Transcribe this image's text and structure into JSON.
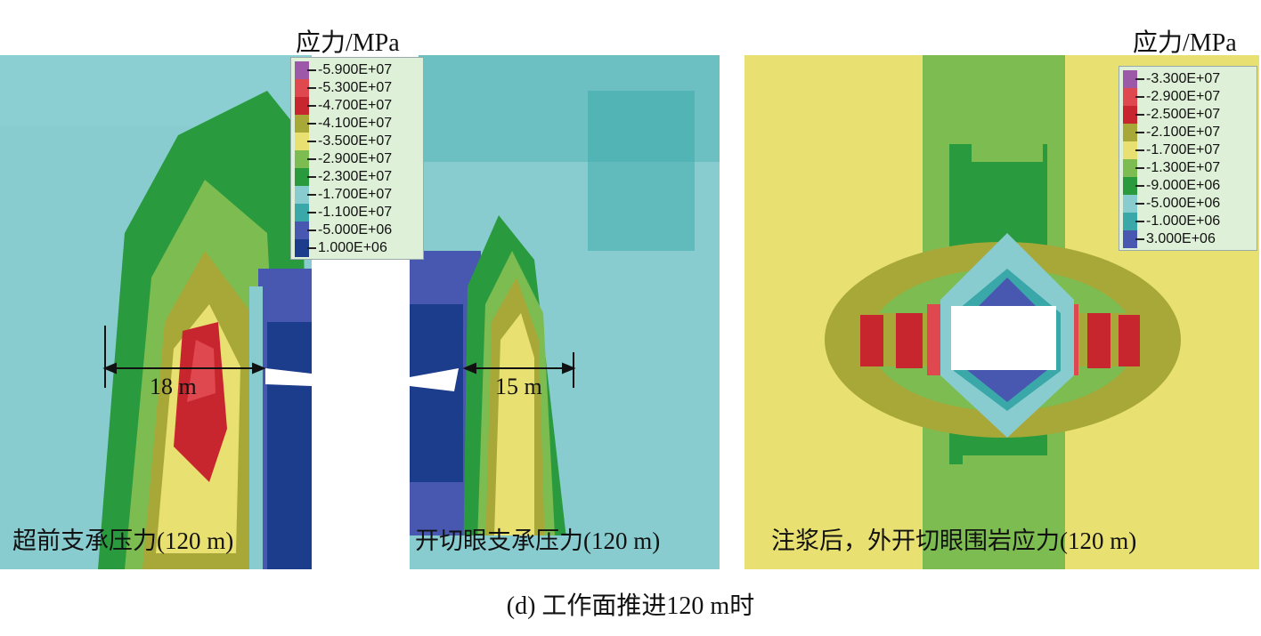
{
  "unit_label": "应力/MPa",
  "panels": [
    {
      "label": "超前支承压力(120 m)"
    },
    {
      "label": "开切眼支承压力(120 m)"
    },
    {
      "label": "注浆后，外开切眼围岩应力(120 m)"
    }
  ],
  "dimensions": {
    "left": "18 m",
    "right": "15 m"
  },
  "legend_left": [
    "-5.900E+07",
    "-5.300E+07",
    "-4.700E+07",
    "-4.100E+07",
    "-3.500E+07",
    "-2.900E+07",
    "-2.300E+07",
    "-1.700E+07",
    "-1.100E+07",
    "-5.000E+06",
    "1.000E+06"
  ],
  "legend_right": [
    "-3.300E+07",
    "-2.900E+07",
    "-2.500E+07",
    "-2.100E+07",
    "-1.700E+07",
    "-1.300E+07",
    "-9.000E+06",
    "-5.000E+06",
    "-1.000E+06",
    "3.000E+06"
  ],
  "legend_colors": [
    "#9b59a8",
    "#e04850",
    "#c8262e",
    "#a8a838",
    "#e8e070",
    "#7cbc50",
    "#2a9a3e",
    "#88ccd0",
    "#3aa8a8",
    "#4858b0",
    "#1c3c8c"
  ],
  "caption": "(d) 工作面推进120 m时"
}
